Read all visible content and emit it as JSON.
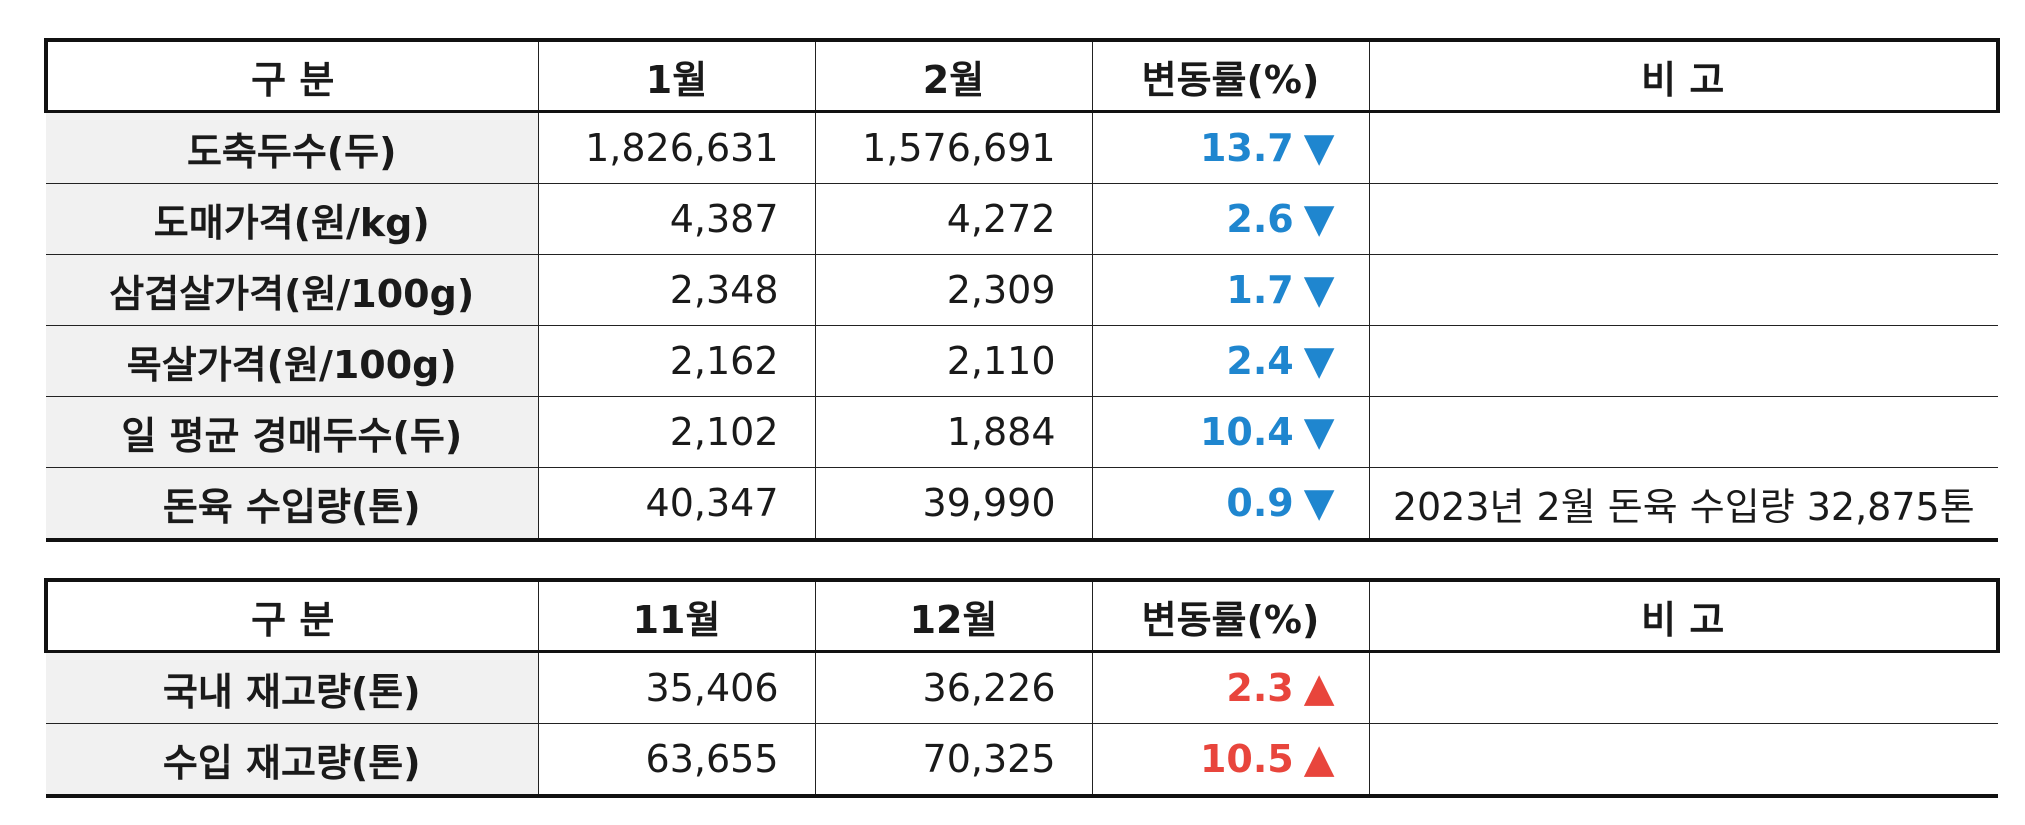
{
  "table1": {
    "headers": [
      "구 분",
      "1월",
      "2월",
      "변동률(%)",
      "비 고"
    ],
    "rows": [
      {
        "label": "도축두수(두)",
        "v1": "1,826,631",
        "v2": "1,576,691",
        "rate": "13.7",
        "dir": "▼",
        "note": ""
      },
      {
        "label": "도매가격(원/kg)",
        "v1": "4,387",
        "v2": "4,272",
        "rate": "2.6",
        "dir": "▼",
        "note": ""
      },
      {
        "label": "삼겹살가격(원/100g)",
        "v1": "2,348",
        "v2": "2,309",
        "rate": "1.7",
        "dir": "▼",
        "note": ""
      },
      {
        "label": "목살가격(원/100g)",
        "v1": "2,162",
        "v2": "2,110",
        "rate": "2.4",
        "dir": "▼",
        "note": ""
      },
      {
        "label": "일 평균 경매두수(두)",
        "v1": "2,102",
        "v2": "1,884",
        "rate": "10.4",
        "dir": "▼",
        "note": ""
      },
      {
        "label": "돈육 수입량(톤)",
        "v1": "40,347",
        "v2": "39,990",
        "rate": "0.9",
        "dir": "▼",
        "note": "2023년 2월 돈육 수입량 32,875톤"
      }
    ]
  },
  "table2": {
    "headers": [
      "구 분",
      "11월",
      "12월",
      "변동률(%)",
      "비 고"
    ],
    "rows": [
      {
        "label": "국내 재고량(톤)",
        "v1": "35,406",
        "v2": "36,226",
        "rate": "2.3",
        "dir": "▲",
        "note": ""
      },
      {
        "label": "수입 재고량(톤)",
        "v1": "63,655",
        "v2": "70,325",
        "rate": "10.5",
        "dir": "▲",
        "note": ""
      }
    ]
  },
  "colors": {
    "down": "#1f86cf",
    "up": "#e8453c",
    "label_bg": "#f1f1f1"
  }
}
